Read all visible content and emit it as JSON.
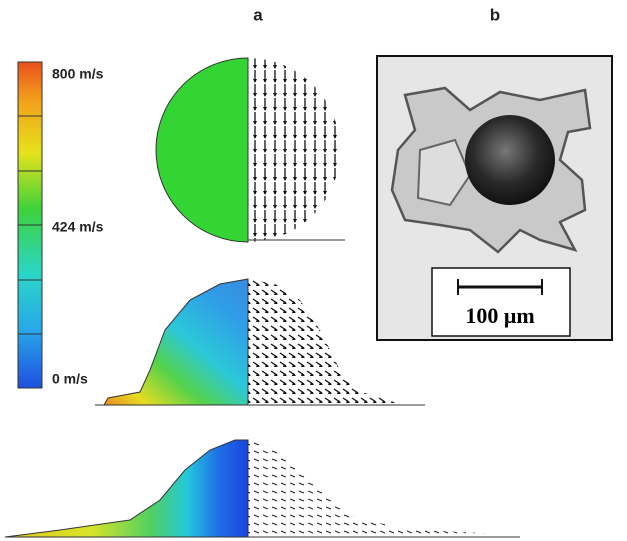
{
  "labels": {
    "a": "a",
    "b": "b"
  },
  "colorbar": {
    "max": "800 m/s",
    "mid": "424 m/s",
    "min": "0 m/s"
  },
  "scale_bar": "100 μm"
}
